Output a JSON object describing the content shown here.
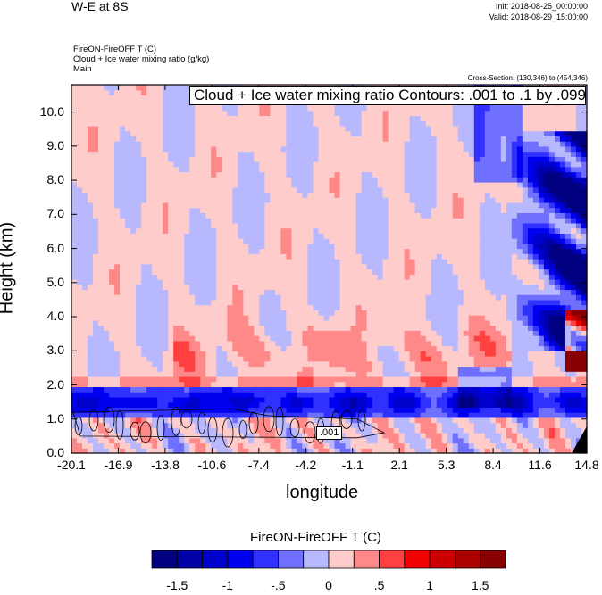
{
  "header": {
    "title": "W-E at 8S",
    "init": "Init: 2018-08-25_00:00:00",
    "valid": "Valid: 2018-08-29_15:00:00",
    "field_1": "FireON-FireOFF T   (C)",
    "field_2": "Cloud + Ice water mixing ratio   (g/kg)",
    "field_3": "Main",
    "cross_section": "Cross-Section: (130,346) to (454,346)"
  },
  "chart_data": {
    "type": "heatmap",
    "title": "W-E at 8S",
    "xlabel": "longitude",
    "ylabel": "Height (km)",
    "xlim": [
      -20.1,
      14.8
    ],
    "ylim": [
      0,
      10.8
    ],
    "x_ticks": [
      "-20.1",
      "-16.9",
      "-13.8",
      "-10.6",
      "-7.4",
      "-4.2",
      "-1.1",
      "2.1",
      "5.3",
      "8.4",
      "11.6",
      "14.8"
    ],
    "y_ticks": [
      "0.0",
      "1.0",
      "2.0",
      "3.0",
      "4.0",
      "5.0",
      "6.0",
      "7.0",
      "8.0",
      "9.0",
      "10.0"
    ],
    "y_tick_values": [
      0,
      1,
      2,
      3,
      4,
      5,
      6,
      7,
      8,
      9,
      10
    ],
    "contour_info": "Cloud + Ice water mixing ratio Contours: .001 to .1 by .099",
    "contour_label": ".001",
    "colorbar": {
      "title": "FireON-FireOFF T  (C)",
      "levels": [
        -1.5,
        -1.25,
        -1,
        -0.75,
        -0.5,
        -0.25,
        0,
        0.25,
        0.5,
        0.75,
        1,
        1.25,
        1.5
      ],
      "labels": [
        "-1.5",
        "-1",
        "-.5",
        "0",
        ".5",
        "1",
        "1.5"
      ],
      "colors": [
        "#000080",
        "#0000a8",
        "#0000cc",
        "#0000f0",
        "#3030ff",
        "#7070ff",
        "#b8b8ff",
        "#ffcccc",
        "#ff8888",
        "#ff4040",
        "#f00000",
        "#cc0000",
        "#aa0000",
        "#880000"
      ]
    }
  }
}
